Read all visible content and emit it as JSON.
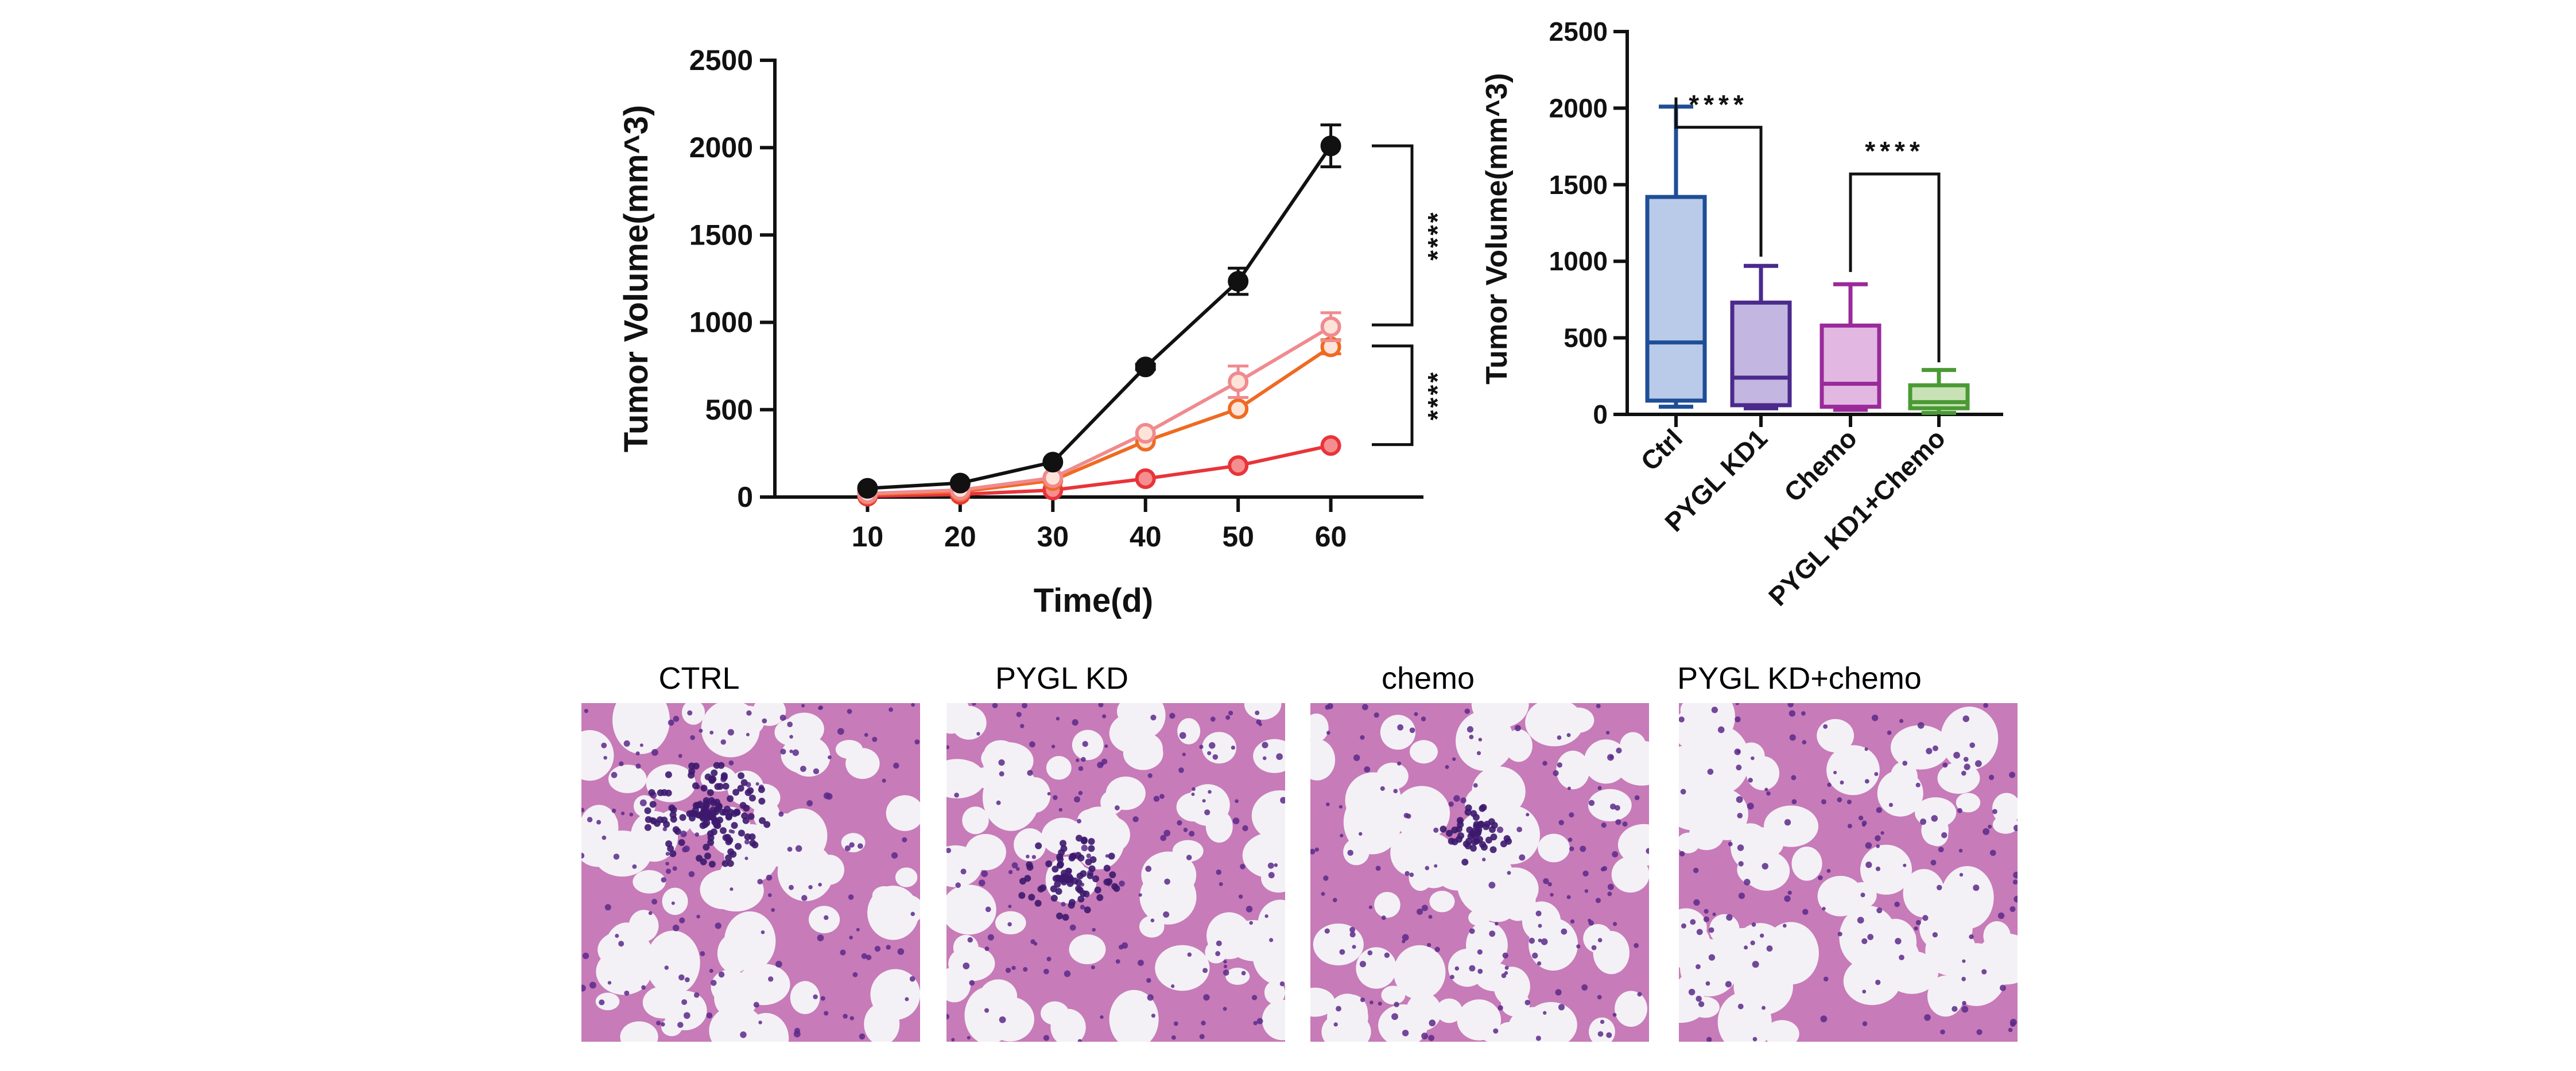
{
  "colors": {
    "ctrl_line": "#111111",
    "pygl_kd_line": "#f08a8f",
    "chemo_line": "#ef6a22",
    "combo_line": "#e8343a",
    "box_ctrl": "#1f4e97",
    "box_pygl": "#4a2a8c",
    "box_chemo": "#9a2a9a",
    "box_combo": "#4a9a34",
    "tissue_bg": "#efe6f2",
    "tissue_nuclei": "#5a2a8a",
    "tissue_stroma": "#c77bb8"
  },
  "chart_data": [
    {
      "type": "line",
      "xlabel": "Time(d)",
      "ylabel": "Tumor Volume(mm^3)",
      "x": [
        10,
        20,
        30,
        40,
        50,
        60
      ],
      "xlim": [
        0,
        70
      ],
      "ylim": [
        0,
        2500
      ],
      "xticks": [
        "10",
        "20",
        "30",
        "40",
        "50",
        "60"
      ],
      "yticks": [
        "0",
        "500",
        "1000",
        "1500",
        "2000",
        "2500"
      ],
      "series": [
        {
          "key": "ctrl",
          "marker": "filled",
          "values": [
            50,
            80,
            200,
            745,
            1235,
            2010
          ],
          "errors": [
            0,
            0,
            0,
            15,
            75,
            120
          ]
        },
        {
          "key": "pygl_kd",
          "marker": "open",
          "values": [
            20,
            40,
            110,
            365,
            660,
            975
          ],
          "errors": [
            0,
            0,
            0,
            0,
            90,
            80
          ]
        },
        {
          "key": "chemo",
          "marker": "open",
          "values": [
            15,
            30,
            95,
            320,
            505,
            860
          ],
          "errors": [
            0,
            0,
            0,
            0,
            0,
            40
          ]
        },
        {
          "key": "combo",
          "marker": "shaded",
          "values": [
            5,
            15,
            40,
            105,
            180,
            295
          ],
          "errors": [
            0,
            0,
            0,
            0,
            0,
            0
          ]
        }
      ],
      "significance": [
        {
          "label": "****",
          "from_value": 2010,
          "to_value": 985
        },
        {
          "label": "****",
          "from_value": 865,
          "to_value": 300
        }
      ]
    },
    {
      "type": "box",
      "ylabel": "Tumor Volume(mm^3)",
      "ylim": [
        0,
        2500
      ],
      "yticks": [
        "0",
        "500",
        "1000",
        "1500",
        "2000",
        "2500"
      ],
      "categories": [
        "Ctrl",
        "PYGL KD1",
        "Chemo",
        "PYGL KD1+Chemo"
      ],
      "boxes": [
        {
          "min": 50,
          "q1": 90,
          "median": 470,
          "q3": 1420,
          "max": 2010
        },
        {
          "min": 40,
          "q1": 60,
          "median": 240,
          "q3": 730,
          "max": 970
        },
        {
          "min": 30,
          "q1": 50,
          "median": 200,
          "q3": 580,
          "max": 850
        },
        {
          "min": 10,
          "q1": 40,
          "median": 80,
          "q3": 190,
          "max": 290
        }
      ],
      "significance": [
        {
          "label": "****",
          "from": "Ctrl",
          "to": "PYGL KD1"
        },
        {
          "label": "****",
          "from": "Chemo",
          "to": "PYGL KD1+Chemo"
        }
      ]
    }
  ],
  "tissue_panels": [
    {
      "key": "ctrl",
      "label": "CTRL"
    },
    {
      "key": "pygl_kd",
      "label": "PYGL KD"
    },
    {
      "key": "chemo",
      "label": "chemo"
    },
    {
      "key": "combo",
      "label": "PYGL KD+chemo"
    }
  ]
}
